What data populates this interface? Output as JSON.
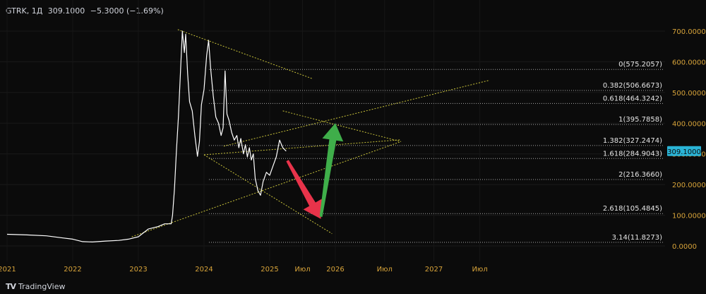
{
  "header": {
    "symbol": "GTRK, 1Д",
    "price": "309.1000",
    "change": "−5.3000 (−1.69%)"
  },
  "footer": {
    "logo": "TV",
    "brand": "TradingView"
  },
  "colors": {
    "background": "#0b0b0b",
    "price_line": "#ffffff",
    "axis_label": "#d8a43a",
    "fib_line": "#cfcfcf",
    "trend_line": "#c8c23a",
    "price_tag_bg": "#2ab4d6",
    "arrow_down": "#e8334a",
    "arrow_up": "#3fae4a"
  },
  "chart_data": {
    "type": "line",
    "title": "",
    "xlabel": "",
    "ylabel": "",
    "ylim": [
      -40,
      740
    ],
    "y_ticks": [
      "700.0000",
      "600.0000",
      "500.0000",
      "400.0000",
      "300.0000",
      "200.0000",
      "100.0000",
      "0.0000"
    ],
    "y_tick_values": [
      700,
      600,
      500,
      400,
      300,
      200,
      100,
      0
    ],
    "x_ticks": [
      {
        "label": "2021",
        "t": 2021.0
      },
      {
        "label": "2022",
        "t": 2022.0
      },
      {
        "label": "2023",
        "t": 2023.0
      },
      {
        "label": "2024",
        "t": 2024.0
      },
      {
        "label": "2025",
        "t": 2025.0
      },
      {
        "label": "Июл",
        "t": 2025.5
      },
      {
        "label": "2026",
        "t": 2026.0
      },
      {
        "label": "Июл",
        "t": 2026.75
      },
      {
        "label": "2027",
        "t": 2027.5
      },
      {
        "label": "Июл",
        "t": 2028.2
      }
    ],
    "last_price": {
      "label": "309.1000",
      "value": 309.1
    },
    "fib_levels": [
      {
        "label": "0(575.2057)",
        "value": 575.2057
      },
      {
        "label": "0.382(506.6673)",
        "value": 506.6673
      },
      {
        "label": "0.618(464.3242)",
        "value": 464.3242
      },
      {
        "label": "1(395.7858)",
        "value": 395.7858
      },
      {
        "label": "1.382(327.2474)",
        "value": 327.2474
      },
      {
        "label": "1.618(284.9043)",
        "value": 284.9043
      },
      {
        "label": "2(216.3660)",
        "value": 216.366
      },
      {
        "label": "2.618(105.4845)",
        "value": 105.4845
      },
      {
        "label": "3.14(11.8273)",
        "value": 11.8273
      }
    ],
    "series": [
      {
        "points": [
          [
            2021.0,
            38
          ],
          [
            2021.3,
            36
          ],
          [
            2021.6,
            33
          ],
          [
            2021.85,
            26
          ],
          [
            2022.0,
            22
          ],
          [
            2022.15,
            14
          ],
          [
            2022.3,
            13
          ],
          [
            2022.5,
            16
          ],
          [
            2022.7,
            18
          ],
          [
            2022.85,
            22
          ],
          [
            2023.0,
            30
          ],
          [
            2023.15,
            55
          ],
          [
            2023.3,
            63
          ],
          [
            2023.4,
            72
          ],
          [
            2023.5,
            72
          ],
          [
            2023.52,
            100
          ],
          [
            2023.55,
            185
          ],
          [
            2023.58,
            310
          ],
          [
            2023.61,
            420
          ],
          [
            2023.64,
            560
          ],
          [
            2023.67,
            700
          ],
          [
            2023.7,
            630
          ],
          [
            2023.72,
            690
          ],
          [
            2023.75,
            560
          ],
          [
            2023.78,
            470
          ],
          [
            2023.82,
            440
          ],
          [
            2023.86,
            360
          ],
          [
            2023.9,
            292
          ],
          [
            2023.93,
            340
          ],
          [
            2023.96,
            460
          ],
          [
            2024.0,
            510
          ],
          [
            2024.04,
            620
          ],
          [
            2024.07,
            670
          ],
          [
            2024.1,
            580
          ],
          [
            2024.14,
            490
          ],
          [
            2024.18,
            420
          ],
          [
            2024.22,
            400
          ],
          [
            2024.26,
            360
          ],
          [
            2024.29,
            385
          ],
          [
            2024.32,
            570
          ],
          [
            2024.35,
            430
          ],
          [
            2024.38,
            410
          ],
          [
            2024.42,
            370
          ],
          [
            2024.46,
            345
          ],
          [
            2024.5,
            360
          ],
          [
            2024.53,
            320
          ],
          [
            2024.56,
            350
          ],
          [
            2024.6,
            300
          ],
          [
            2024.63,
            330
          ],
          [
            2024.66,
            290
          ],
          [
            2024.69,
            320
          ],
          [
            2024.72,
            280
          ],
          [
            2024.75,
            300
          ],
          [
            2024.78,
            220
          ],
          [
            2024.82,
            180
          ],
          [
            2024.86,
            165
          ],
          [
            2024.9,
            210
          ],
          [
            2024.95,
            240
          ],
          [
            2025.0,
            230
          ],
          [
            2025.05,
            260
          ],
          [
            2025.1,
            290
          ],
          [
            2025.15,
            345
          ],
          [
            2025.2,
            320
          ],
          [
            2025.25,
            309.1
          ]
        ]
      }
    ],
    "annotations": [
      {
        "type": "trendline",
        "from": [
          2023.6,
          705
        ],
        "to": [
          2025.65,
          545
        ]
      },
      {
        "type": "trendline",
        "from": [
          2024.0,
          297
        ],
        "to": [
          2027.0,
          346
        ]
      },
      {
        "type": "trendline",
        "from": [
          2024.0,
          297
        ],
        "to": [
          2025.95,
          40
        ]
      },
      {
        "type": "trendline",
        "from": [
          2022.9,
          30
        ],
        "to": [
          2027.0,
          340
        ]
      },
      {
        "type": "trendline",
        "from": [
          2024.3,
          325
        ],
        "to": [
          2028.35,
          540
        ]
      },
      {
        "type": "trendline",
        "from": [
          2025.2,
          440
        ],
        "to": [
          2027.0,
          340
        ]
      },
      {
        "type": "arrow",
        "direction": "down",
        "from": [
          2025.27,
          278
        ],
        "to": [
          2025.78,
          88
        ]
      },
      {
        "type": "arrow",
        "direction": "up",
        "from": [
          2025.78,
          95
        ],
        "to": [
          2026.0,
          400
        ]
      }
    ]
  }
}
